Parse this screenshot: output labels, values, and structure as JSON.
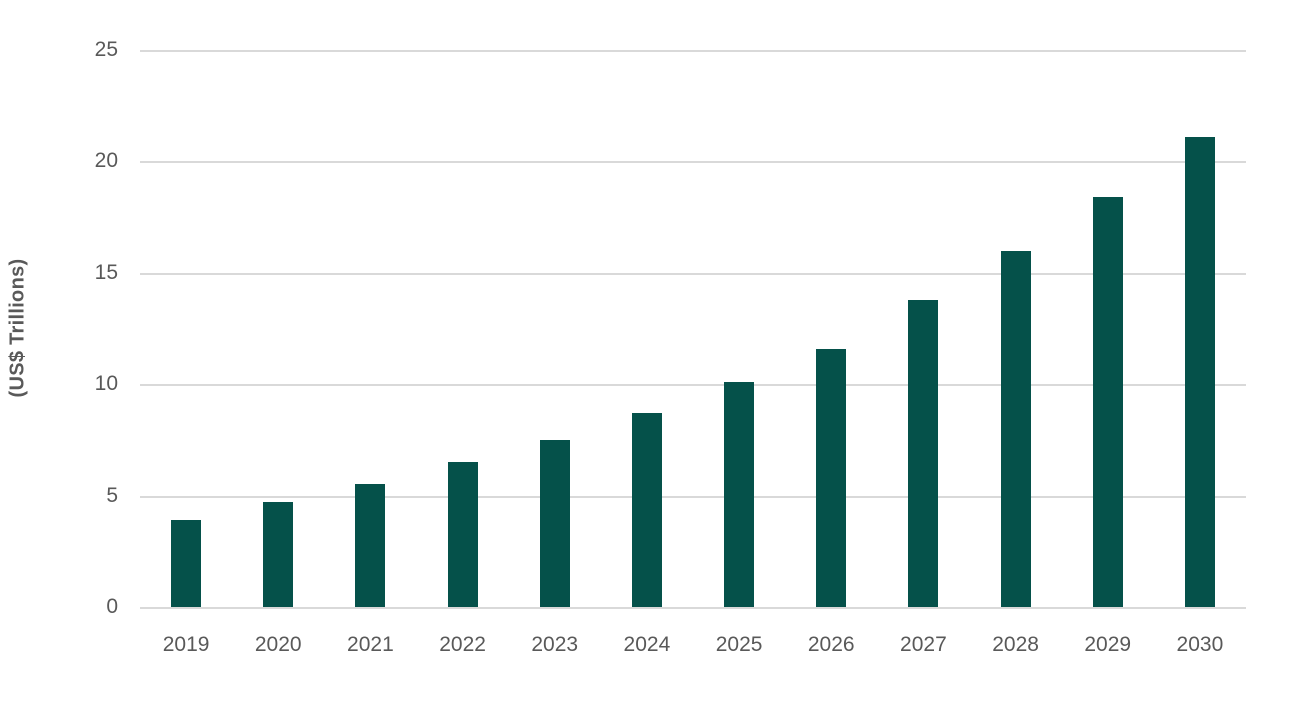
{
  "chart_data": {
    "type": "bar",
    "title": "",
    "categories": [
      "2019",
      "2020",
      "2021",
      "2022",
      "2023",
      "2024",
      "2025",
      "2026",
      "2027",
      "2028",
      "2029",
      "2030"
    ],
    "values": [
      3.9,
      4.7,
      5.5,
      6.5,
      7.5,
      8.7,
      10.1,
      11.6,
      13.8,
      16.0,
      18.4,
      21.1
    ],
    "xlabel": "",
    "ylabel": "(US$ Trillions)",
    "ylim": [
      0,
      25
    ],
    "yticks": [
      0,
      5,
      10,
      15,
      20,
      25
    ],
    "grid": "horizontal",
    "legend_position": "none",
    "colors": {
      "bar_fill": "#05514a",
      "gridline": "#d9d9d9",
      "tick_label": "#595959",
      "axis_title": "#595959",
      "background": "#ffffff"
    }
  }
}
